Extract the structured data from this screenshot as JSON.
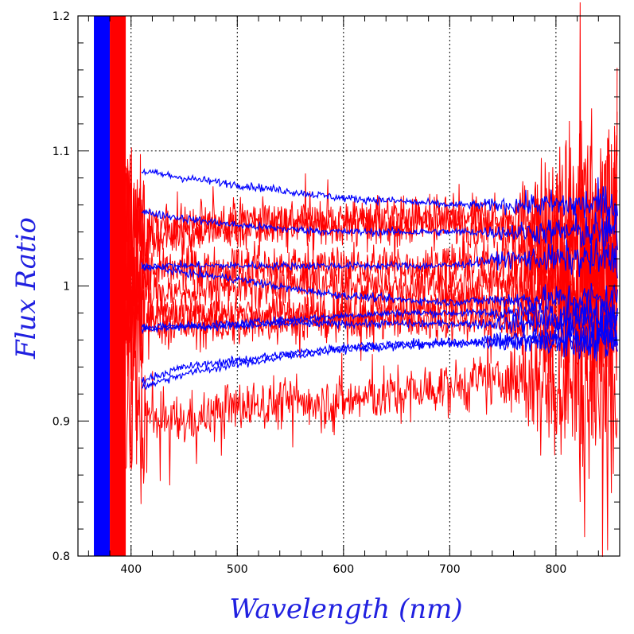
{
  "chart_data": {
    "type": "line",
    "title": "",
    "xlabel": "Wavelength (nm)",
    "ylabel": "Flux Ratio",
    "xlim": [
      350,
      860
    ],
    "ylim": [
      0.8,
      1.2
    ],
    "x_ticks": [
      400,
      500,
      600,
      700,
      800
    ],
    "y_ticks": [
      0.8,
      0.9,
      1.0,
      1.1,
      1.2
    ],
    "x_tick_labels": [
      "400",
      "500",
      "600",
      "700",
      "800"
    ],
    "y_tick_labels": [
      "0.8",
      "0.9",
      "1",
      "1.1",
      "1.2"
    ],
    "grid": "dotted, inner box 400-800 nm × 0.9-1.1",
    "legend": "none",
    "colors": {
      "red_series": "#ff0000",
      "blue_series": "#0000ff",
      "axis_title": "#2020e0"
    },
    "red_series": [
      {
        "x": [
          400,
          450,
          500,
          550,
          600,
          650,
          700,
          750,
          800,
          850
        ],
        "y": [
          1.04,
          1.045,
          1.05,
          1.05,
          1.05,
          1.05,
          1.05,
          1.05,
          1.05,
          1.05
        ],
        "noise": 0.012
      },
      {
        "x": [
          400,
          450,
          500,
          550,
          600,
          650,
          700,
          750,
          800,
          850
        ],
        "y": [
          1.035,
          1.04,
          1.042,
          1.045,
          1.045,
          1.045,
          1.045,
          1.045,
          1.04,
          1.04
        ],
        "noise": 0.012
      },
      {
        "x": [
          400,
          450,
          500,
          550,
          600,
          650,
          700,
          750,
          800,
          850
        ],
        "y": [
          1.01,
          1.012,
          1.015,
          1.015,
          1.015,
          1.015,
          1.015,
          1.02,
          1.02,
          1.02
        ],
        "noise": 0.012
      },
      {
        "x": [
          400,
          450,
          500,
          550,
          600,
          650,
          700,
          750,
          800,
          850
        ],
        "y": [
          0.995,
          0.995,
          1.0,
          1.0,
          1.0,
          1.0,
          1.0,
          1.005,
          1.005,
          1.005
        ],
        "noise": 0.012
      },
      {
        "x": [
          400,
          450,
          500,
          550,
          600,
          650,
          700,
          750,
          800,
          850
        ],
        "y": [
          0.985,
          0.98,
          0.98,
          0.98,
          0.98,
          0.985,
          0.985,
          0.99,
          0.99,
          0.99
        ],
        "noise": 0.012
      },
      {
        "x": [
          400,
          450,
          500,
          550,
          600,
          650,
          700,
          750,
          800,
          850
        ],
        "y": [
          0.975,
          0.97,
          0.97,
          0.975,
          0.975,
          0.975,
          0.975,
          0.975,
          0.975,
          0.975
        ],
        "noise": 0.012
      },
      {
        "x": [
          400,
          450,
          500,
          550,
          600,
          650,
          700,
          750,
          800,
          850
        ],
        "y": [
          0.9,
          0.9,
          0.91,
          0.915,
          0.915,
          0.92,
          0.925,
          0.93,
          0.93,
          0.93
        ],
        "noise": 0.015
      }
    ],
    "blue_series": [
      {
        "x": [
          410,
          450,
          500,
          550,
          600,
          650,
          700,
          750,
          800,
          850
        ],
        "y": [
          1.085,
          1.08,
          1.075,
          1.07,
          1.065,
          1.063,
          1.06,
          1.06,
          1.06,
          1.06
        ]
      },
      {
        "x": [
          410,
          450,
          500,
          550,
          600,
          650,
          700,
          750,
          800,
          850
        ],
        "y": [
          1.055,
          1.05,
          1.045,
          1.042,
          1.04,
          1.04,
          1.04,
          1.04,
          1.04,
          1.04
        ]
      },
      {
        "x": [
          410,
          450,
          500,
          550,
          600,
          650,
          700,
          750,
          800,
          850
        ],
        "y": [
          1.015,
          1.015,
          1.015,
          1.015,
          1.015,
          1.015,
          1.015,
          1.02,
          1.02,
          1.02
        ]
      },
      {
        "x": [
          410,
          450,
          500,
          550,
          600,
          650,
          700,
          750,
          800,
          850
        ],
        "y": [
          1.015,
          1.01,
          1.005,
          0.998,
          0.993,
          0.99,
          0.988,
          0.99,
          0.99,
          0.99
        ]
      },
      {
        "x": [
          410,
          450,
          500,
          550,
          600,
          650,
          700,
          750,
          800,
          850
        ],
        "y": [
          0.968,
          0.97,
          0.972,
          0.975,
          0.978,
          0.98,
          0.98,
          0.98,
          0.98,
          0.98
        ]
      },
      {
        "x": [
          410,
          450,
          500,
          550,
          600,
          650,
          700,
          750,
          800,
          850
        ],
        "y": [
          0.97,
          0.97,
          0.97,
          0.972,
          0.972,
          0.972,
          0.972,
          0.972,
          0.972,
          0.972
        ]
      },
      {
        "x": [
          410,
          450,
          500,
          550,
          600,
          650,
          700,
          750,
          800,
          850
        ],
        "y": [
          0.93,
          0.94,
          0.945,
          0.95,
          0.955,
          0.957,
          0.958,
          0.96,
          0.96,
          0.96
        ]
      },
      {
        "x": [
          410,
          450,
          500,
          550,
          600,
          650,
          700,
          750,
          800,
          850
        ],
        "y": [
          0.925,
          0.935,
          0.942,
          0.948,
          0.953,
          0.955,
          0.957,
          0.958,
          0.96,
          0.96
        ]
      }
    ],
    "saturated_blue_band_x": [
      365,
      380
    ],
    "saturated_red_band_x": [
      380,
      395
    ]
  }
}
